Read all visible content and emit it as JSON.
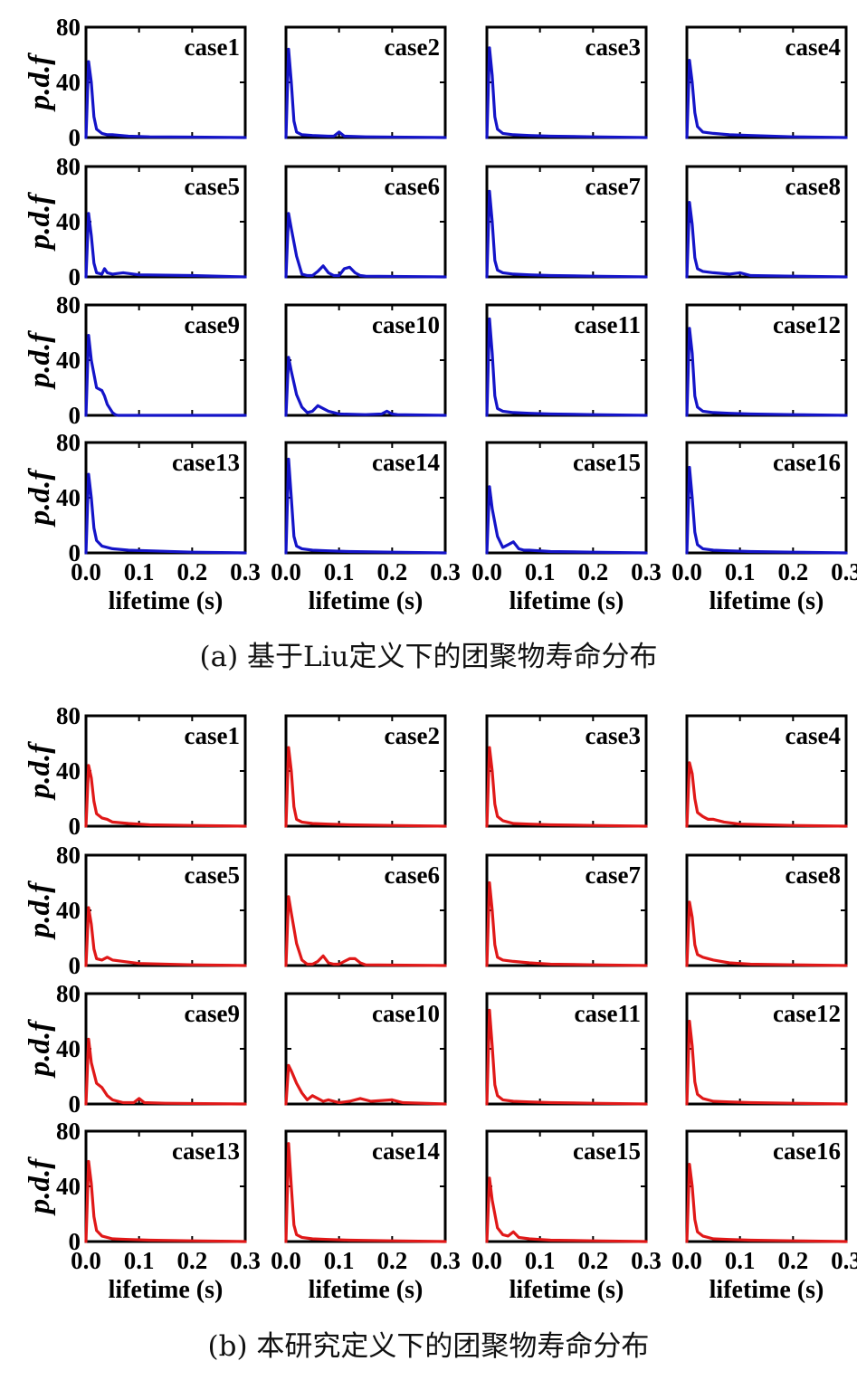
{
  "chart_data": [
    {
      "type": "line",
      "caption": "(a) 基于Liu定义下的团聚物寿命分布",
      "color": "#1414c8",
      "ylabel": "p.d.f",
      "xlabel": "lifetime (s)",
      "xlim": [
        0,
        0.3
      ],
      "ylim": [
        0,
        80
      ],
      "xticks": [
        "0.0",
        "0.1",
        "0.2",
        "0.3"
      ],
      "yticks": [
        "0",
        "40",
        "80"
      ],
      "panels": [
        {
          "title": "case1",
          "x": [
            0,
            0.005,
            0.01,
            0.015,
            0.02,
            0.03,
            0.04,
            0.05,
            0.08,
            0.12,
            0.2,
            0.3
          ],
          "y": [
            0,
            55,
            40,
            15,
            6,
            3,
            2,
            2,
            1,
            0.5,
            0.3,
            0
          ]
        },
        {
          "title": "case2",
          "x": [
            0,
            0.005,
            0.01,
            0.015,
            0.02,
            0.03,
            0.05,
            0.08,
            0.09,
            0.1,
            0.11,
            0.15,
            0.3
          ],
          "y": [
            0,
            64,
            40,
            12,
            4,
            2,
            1.5,
            1,
            1,
            4,
            1,
            0.5,
            0
          ]
        },
        {
          "title": "case3",
          "x": [
            0,
            0.005,
            0.01,
            0.015,
            0.02,
            0.03,
            0.05,
            0.08,
            0.12,
            0.2,
            0.3
          ],
          "y": [
            0,
            65,
            45,
            15,
            6,
            3,
            2,
            1.5,
            1,
            0.5,
            0
          ]
        },
        {
          "title": "case4",
          "x": [
            0,
            0.005,
            0.01,
            0.015,
            0.02,
            0.03,
            0.05,
            0.08,
            0.12,
            0.2,
            0.3
          ],
          "y": [
            0,
            56,
            40,
            18,
            8,
            4,
            3,
            2,
            1.5,
            0.5,
            0
          ]
        },
        {
          "title": "case5",
          "x": [
            0,
            0.005,
            0.01,
            0.015,
            0.02,
            0.03,
            0.035,
            0.04,
            0.05,
            0.07,
            0.1,
            0.2,
            0.3
          ],
          "y": [
            0,
            46,
            30,
            10,
            3,
            2,
            6,
            3,
            2,
            3,
            1.5,
            1,
            0
          ]
        },
        {
          "title": "case6",
          "x": [
            0,
            0.005,
            0.01,
            0.02,
            0.03,
            0.04,
            0.05,
            0.06,
            0.07,
            0.08,
            0.09,
            0.1,
            0.11,
            0.12,
            0.13,
            0.14,
            0.15,
            0.3
          ],
          "y": [
            0,
            46,
            35,
            15,
            2,
            1,
            1,
            4,
            8,
            3,
            1,
            1,
            6,
            7,
            3,
            1,
            0.5,
            0
          ]
        },
        {
          "title": "case7",
          "x": [
            0,
            0.005,
            0.01,
            0.015,
            0.02,
            0.03,
            0.05,
            0.08,
            0.12,
            0.2,
            0.3
          ],
          "y": [
            0,
            62,
            40,
            12,
            5,
            3,
            2,
            1.5,
            1,
            0.5,
            0
          ]
        },
        {
          "title": "case8",
          "x": [
            0,
            0.005,
            0.01,
            0.015,
            0.02,
            0.03,
            0.05,
            0.08,
            0.1,
            0.12,
            0.2,
            0.3
          ],
          "y": [
            0,
            54,
            38,
            14,
            6,
            4,
            3,
            2,
            3,
            1,
            0.5,
            0
          ]
        },
        {
          "title": "case9",
          "x": [
            0,
            0.005,
            0.01,
            0.02,
            0.03,
            0.035,
            0.04,
            0.05,
            0.055,
            0.06,
            0.1,
            0.3
          ],
          "y": [
            0,
            58,
            40,
            20,
            18,
            14,
            8,
            2,
            0.5,
            0,
            0,
            0
          ]
        },
        {
          "title": "case10",
          "x": [
            0,
            0.005,
            0.01,
            0.02,
            0.03,
            0.04,
            0.05,
            0.06,
            0.07,
            0.08,
            0.09,
            0.1,
            0.15,
            0.18,
            0.19,
            0.2,
            0.21,
            0.3
          ],
          "y": [
            0,
            42,
            32,
            15,
            6,
            2,
            3,
            7,
            5,
            3,
            2,
            1,
            0.5,
            1,
            3,
            1,
            0.5,
            0
          ]
        },
        {
          "title": "case11",
          "x": [
            0,
            0.005,
            0.01,
            0.015,
            0.02,
            0.03,
            0.05,
            0.08,
            0.12,
            0.2,
            0.3
          ],
          "y": [
            0,
            70,
            45,
            14,
            5,
            3,
            2,
            1.5,
            1,
            0.5,
            0
          ]
        },
        {
          "title": "case12",
          "x": [
            0,
            0.005,
            0.01,
            0.015,
            0.02,
            0.03,
            0.05,
            0.08,
            0.12,
            0.2,
            0.3
          ],
          "y": [
            0,
            63,
            45,
            14,
            6,
            3,
            2,
            1.5,
            1,
            0.5,
            0
          ]
        },
        {
          "title": "case13",
          "x": [
            0,
            0.005,
            0.01,
            0.015,
            0.02,
            0.03,
            0.05,
            0.08,
            0.12,
            0.2,
            0.3
          ],
          "y": [
            0,
            57,
            40,
            18,
            9,
            5,
            3,
            2,
            1.5,
            0.5,
            0
          ]
        },
        {
          "title": "case14",
          "x": [
            0,
            0.005,
            0.01,
            0.015,
            0.02,
            0.03,
            0.05,
            0.08,
            0.12,
            0.2,
            0.3
          ],
          "y": [
            0,
            68,
            40,
            12,
            5,
            3,
            2,
            1.5,
            1,
            0.5,
            0
          ]
        },
        {
          "title": "case15",
          "x": [
            0,
            0.005,
            0.01,
            0.02,
            0.03,
            0.04,
            0.05,
            0.06,
            0.07,
            0.08,
            0.12,
            0.2,
            0.3
          ],
          "y": [
            0,
            48,
            32,
            12,
            4,
            6,
            8,
            3,
            2,
            2,
            1,
            0.5,
            0
          ]
        },
        {
          "title": "case16",
          "x": [
            0,
            0.005,
            0.01,
            0.015,
            0.02,
            0.03,
            0.05,
            0.08,
            0.12,
            0.2,
            0.3
          ],
          "y": [
            0,
            62,
            40,
            15,
            6,
            3,
            2,
            1.5,
            1,
            0.5,
            0
          ]
        }
      ]
    },
    {
      "type": "line",
      "caption": "(b) 本研究定义下的团聚物寿命分布",
      "color": "#e01818",
      "ylabel": "p.d.f",
      "xlabel": "lifetime (s)",
      "xlim": [
        0,
        0.3
      ],
      "ylim": [
        0,
        80
      ],
      "xticks": [
        "0.0",
        "0.1",
        "0.2",
        "0.3"
      ],
      "yticks": [
        "0",
        "40",
        "80"
      ],
      "panels": [
        {
          "title": "case1",
          "x": [
            0,
            0.005,
            0.01,
            0.015,
            0.02,
            0.03,
            0.04,
            0.05,
            0.08,
            0.12,
            0.2,
            0.3
          ],
          "y": [
            0,
            44,
            35,
            18,
            9,
            6,
            5,
            3,
            2,
            1,
            0.5,
            0
          ]
        },
        {
          "title": "case2",
          "x": [
            0,
            0.005,
            0.01,
            0.015,
            0.02,
            0.03,
            0.05,
            0.08,
            0.12,
            0.2,
            0.3
          ],
          "y": [
            0,
            57,
            40,
            14,
            5,
            3,
            2,
            1.5,
            1,
            0.5,
            0
          ]
        },
        {
          "title": "case3",
          "x": [
            0,
            0.005,
            0.01,
            0.015,
            0.02,
            0.03,
            0.05,
            0.08,
            0.12,
            0.2,
            0.3
          ],
          "y": [
            0,
            57,
            40,
            16,
            7,
            4,
            2,
            1.5,
            1,
            0.5,
            0
          ]
        },
        {
          "title": "case4",
          "x": [
            0,
            0.005,
            0.01,
            0.015,
            0.02,
            0.03,
            0.04,
            0.05,
            0.07,
            0.1,
            0.2,
            0.3
          ],
          "y": [
            0,
            46,
            38,
            20,
            10,
            7,
            5,
            5,
            3,
            1.5,
            0.5,
            0
          ]
        },
        {
          "title": "case5",
          "x": [
            0,
            0.005,
            0.01,
            0.015,
            0.02,
            0.03,
            0.04,
            0.05,
            0.07,
            0.1,
            0.2,
            0.3
          ],
          "y": [
            0,
            42,
            30,
            12,
            5,
            4,
            6,
            4,
            3,
            1.5,
            0.5,
            0
          ]
        },
        {
          "title": "case6",
          "x": [
            0,
            0.005,
            0.01,
            0.02,
            0.03,
            0.04,
            0.05,
            0.06,
            0.07,
            0.08,
            0.09,
            0.1,
            0.11,
            0.12,
            0.13,
            0.14,
            0.15,
            0.3
          ],
          "y": [
            0,
            50,
            38,
            16,
            4,
            1,
            1,
            3,
            7,
            2,
            1,
            1,
            3,
            5,
            5,
            2,
            0.5,
            0
          ]
        },
        {
          "title": "case7",
          "x": [
            0,
            0.005,
            0.01,
            0.015,
            0.02,
            0.03,
            0.05,
            0.08,
            0.12,
            0.2,
            0.3
          ],
          "y": [
            0,
            60,
            40,
            15,
            6,
            4,
            3,
            2,
            1,
            0.5,
            0
          ]
        },
        {
          "title": "case8",
          "x": [
            0,
            0.005,
            0.01,
            0.015,
            0.02,
            0.03,
            0.05,
            0.08,
            0.12,
            0.2,
            0.3
          ],
          "y": [
            0,
            46,
            35,
            15,
            8,
            6,
            4,
            2,
            1,
            0.5,
            0
          ]
        },
        {
          "title": "case9",
          "x": [
            0,
            0.005,
            0.01,
            0.02,
            0.03,
            0.04,
            0.05,
            0.07,
            0.09,
            0.1,
            0.11,
            0.15,
            0.3
          ],
          "y": [
            0,
            47,
            30,
            15,
            12,
            6,
            3,
            1,
            1,
            4,
            1,
            0.5,
            0
          ]
        },
        {
          "title": "case10",
          "x": [
            0,
            0.005,
            0.01,
            0.02,
            0.03,
            0.04,
            0.05,
            0.06,
            0.07,
            0.08,
            0.1,
            0.12,
            0.14,
            0.16,
            0.2,
            0.22,
            0.3
          ],
          "y": [
            0,
            28,
            24,
            15,
            8,
            3,
            6,
            4,
            2,
            3,
            1,
            2,
            4,
            2,
            3,
            1,
            0
          ]
        },
        {
          "title": "case11",
          "x": [
            0,
            0.005,
            0.01,
            0.015,
            0.02,
            0.03,
            0.05,
            0.08,
            0.12,
            0.2,
            0.3
          ],
          "y": [
            0,
            68,
            42,
            14,
            6,
            3,
            2,
            1.5,
            1,
            0.5,
            0
          ]
        },
        {
          "title": "case12",
          "x": [
            0,
            0.005,
            0.01,
            0.015,
            0.02,
            0.03,
            0.05,
            0.08,
            0.12,
            0.2,
            0.3
          ],
          "y": [
            0,
            60,
            42,
            16,
            7,
            4,
            2,
            1.5,
            1,
            0.5,
            0
          ]
        },
        {
          "title": "case13",
          "x": [
            0,
            0.005,
            0.01,
            0.015,
            0.02,
            0.03,
            0.05,
            0.08,
            0.12,
            0.2,
            0.3
          ],
          "y": [
            0,
            58,
            42,
            18,
            8,
            4,
            2,
            1.5,
            1,
            0.5,
            0
          ]
        },
        {
          "title": "case14",
          "x": [
            0,
            0.005,
            0.01,
            0.015,
            0.02,
            0.03,
            0.05,
            0.08,
            0.12,
            0.2,
            0.3
          ],
          "y": [
            0,
            71,
            40,
            12,
            5,
            3,
            2,
            1.5,
            1,
            0.5,
            0
          ]
        },
        {
          "title": "case15",
          "x": [
            0,
            0.005,
            0.01,
            0.02,
            0.03,
            0.04,
            0.05,
            0.06,
            0.08,
            0.12,
            0.2,
            0.3
          ],
          "y": [
            0,
            46,
            30,
            10,
            5,
            4,
            7,
            3,
            2,
            1,
            0.5,
            0
          ]
        },
        {
          "title": "case16",
          "x": [
            0,
            0.005,
            0.01,
            0.015,
            0.02,
            0.03,
            0.05,
            0.08,
            0.12,
            0.2,
            0.3
          ],
          "y": [
            0,
            56,
            40,
            16,
            7,
            4,
            2,
            1.5,
            1,
            0.5,
            0
          ]
        }
      ]
    }
  ]
}
